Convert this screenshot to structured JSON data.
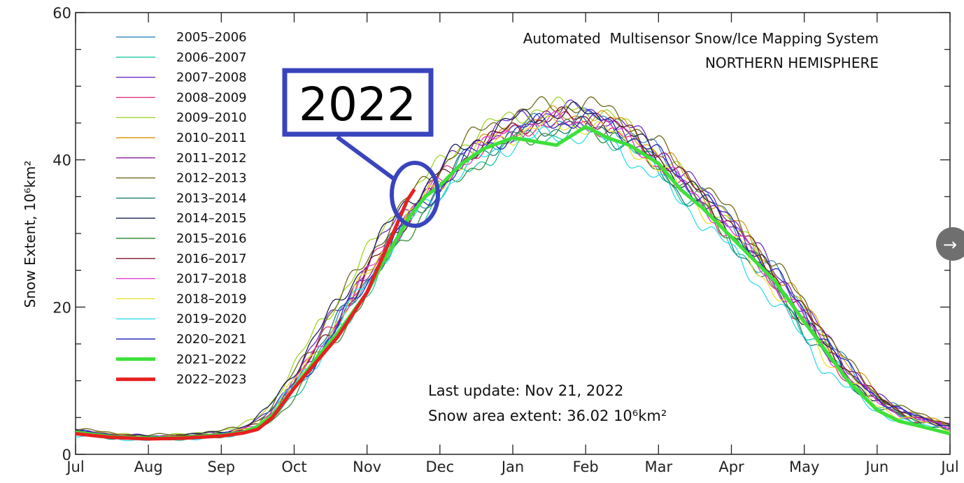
{
  "chart_data": {
    "type": "line",
    "title": "Automated  Multisensor Snow/Ice Mapping System",
    "subtitle": "NORTHERN HEMISPHERE",
    "ylabel": "Snow Extent, 10⁶km²",
    "xlabel": "",
    "ylim": [
      0,
      60
    ],
    "yticks": [
      0,
      20,
      40,
      60
    ],
    "xlim": [
      0,
      12
    ],
    "xticks": [
      "Jul",
      "Aug",
      "Sep",
      "Oct",
      "Nov",
      "Dec",
      "Jan",
      "Feb",
      "Mar",
      "Apr",
      "May",
      "Jun",
      "Jul"
    ],
    "last_update": "Last update: Nov 21, 2022",
    "extent_text": "Snow area extent: 36.02 10⁶km²",
    "annotation": "2022",
    "x_unit": "months since Jul 1",
    "baseline": {
      "x": [
        0,
        0.5,
        1,
        1.5,
        2,
        2.3,
        2.5,
        2.7,
        3,
        3.3,
        3.6,
        4,
        4.3,
        4.6,
        5,
        5.3,
        5.6,
        6,
        6.3,
        6.6,
        7,
        7.3,
        7.6,
        8,
        8.3,
        8.6,
        9,
        9.3,
        9.6,
        10,
        10.3,
        10.6,
        11,
        11.3,
        11.6,
        12
      ],
      "y": [
        3.0,
        2.4,
        2.2,
        2.3,
        2.7,
        3.2,
        4.0,
        5.5,
        9.5,
        13.5,
        18.0,
        24.0,
        28.5,
        32.5,
        36.5,
        39.5,
        41.5,
        43.5,
        44.5,
        44.8,
        45.0,
        44.2,
        42.5,
        39.5,
        36.5,
        34.0,
        30.0,
        26.5,
        23.0,
        18.0,
        14.0,
        10.5,
        7.0,
        5.5,
        4.5,
        3.5
      ]
    },
    "series": [
      {
        "name": "2005–2006",
        "color": "#3f8fc2",
        "offset": 0.8,
        "phase": 0.3
      },
      {
        "name": "2006–2007",
        "color": "#1bc7a0",
        "offset": -1.2,
        "phase": 1.1
      },
      {
        "name": "2007–2008",
        "color": "#6a2cc6",
        "offset": 1.8,
        "phase": 2.0
      },
      {
        "name": "2008–2009",
        "color": "#e0327a",
        "offset": 0.2,
        "phase": 2.7
      },
      {
        "name": "2009–2010",
        "color": "#9fd62c",
        "offset": 2.2,
        "phase": 3.5
      },
      {
        "name": "2010–2011",
        "color": "#d99a1a",
        "offset": 1.2,
        "phase": 4.2
      },
      {
        "name": "2011–2012",
        "color": "#8a1ea0",
        "offset": 0.6,
        "phase": 5.0
      },
      {
        "name": "2012–2013",
        "color": "#6e6a1a",
        "offset": 2.6,
        "phase": 5.6
      },
      {
        "name": "2013–2014",
        "color": "#237a74",
        "offset": -0.4,
        "phase": 0.7
      },
      {
        "name": "2014–2015",
        "color": "#1d2252",
        "offset": 1.5,
        "phase": 1.6
      },
      {
        "name": "2015–2016",
        "color": "#3b8a3b",
        "offset": -0.8,
        "phase": 2.4
      },
      {
        "name": "2016–2017",
        "color": "#7a1a2a",
        "offset": 0.9,
        "phase": 3.1
      },
      {
        "name": "2017–2018",
        "color": "#e23ad0",
        "offset": 0.3,
        "phase": 3.9
      },
      {
        "name": "2018–2019",
        "color": "#e6e23a",
        "offset": -0.2,
        "phase": 4.6
      },
      {
        "name": "2019–2020",
        "color": "#33dbe8",
        "offset": -1.6,
        "phase": 5.3
      },
      {
        "name": "2020–2021",
        "color": "#2a2ac0",
        "offset": 0.5,
        "phase": 6.0
      }
    ],
    "highlight_series": [
      {
        "name": "2021–2022",
        "color": "#3ee03a",
        "x": [
          0,
          0.5,
          1,
          1.5,
          2,
          2.3,
          2.5,
          2.7,
          3,
          3.3,
          3.6,
          4,
          4.3,
          4.6,
          4.8,
          5,
          5.3,
          5.6,
          6,
          6.3,
          6.6,
          7,
          7.3,
          7.6,
          8,
          8.3,
          8.6,
          9,
          9.3,
          9.6,
          10,
          10.3,
          10.6,
          11,
          11.3,
          11.6,
          12
        ],
        "y": [
          3.0,
          2.4,
          2.2,
          2.3,
          2.6,
          3.0,
          3.8,
          5.3,
          9.0,
          13.0,
          16.5,
          22.0,
          27.5,
          32.5,
          35.0,
          36.5,
          39.5,
          41.5,
          43.0,
          42.5,
          42.0,
          44.5,
          43.0,
          42.0,
          39.5,
          36.0,
          33.5,
          29.5,
          26.5,
          23.5,
          18.0,
          14.0,
          10.0,
          6.0,
          4.5,
          3.8,
          2.8
        ]
      },
      {
        "name": "2022–2023",
        "color": "#e82020",
        "x": [
          0,
          0.5,
          1,
          1.5,
          2,
          2.3,
          2.5,
          2.7,
          3,
          3.3,
          3.6,
          4,
          4.2,
          4.4,
          4.55,
          4.65
        ],
        "y": [
          2.8,
          2.3,
          2.1,
          2.2,
          2.5,
          2.9,
          3.4,
          5.0,
          9.0,
          12.5,
          16.0,
          22.0,
          26.5,
          31.0,
          34.5,
          36.0
        ]
      }
    ]
  },
  "ui": {
    "next_label": "→"
  }
}
